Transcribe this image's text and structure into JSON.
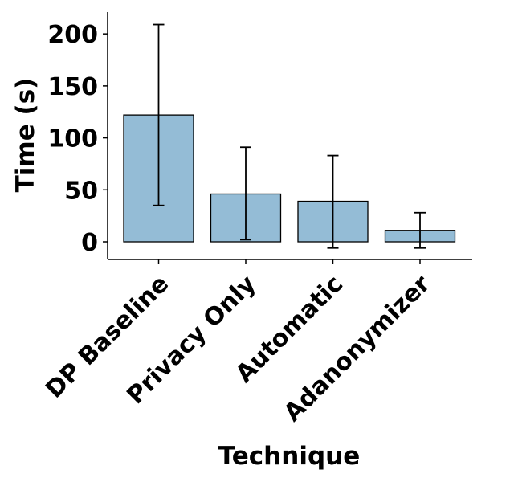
{
  "chart_data": {
    "type": "bar",
    "title": "",
    "xlabel": "Technique",
    "ylabel": "Time (s)",
    "categories": [
      "DP Baseline",
      "Privacy Only",
      "Automatic",
      "Adanonymizer"
    ],
    "values": [
      122,
      46,
      39,
      11
    ],
    "error_low": [
      35,
      2,
      -6,
      -6
    ],
    "error_high": [
      209,
      91,
      83,
      28
    ],
    "ylim": [
      -17,
      221
    ],
    "yticks": [
      0,
      50,
      100,
      150,
      200
    ],
    "bar_color": "#94bcd6",
    "bar_edge_color": "#000000",
    "grid": false,
    "legend": "none"
  }
}
